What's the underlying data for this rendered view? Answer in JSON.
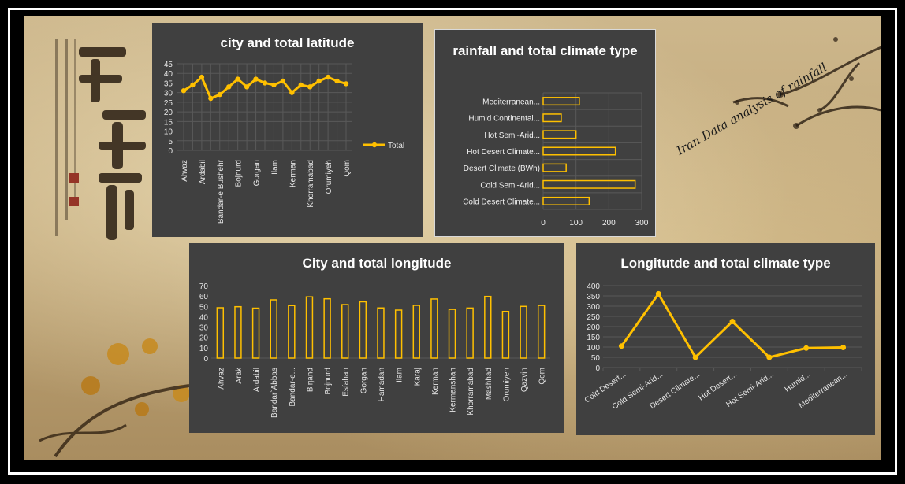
{
  "annotation": "Iran Data analysis of rainfall",
  "colors": {
    "accent": "#ffc000",
    "panel": "#404040",
    "gridline": "#595959",
    "text": "#ffffff"
  },
  "chart_data": [
    {
      "id": "latitude",
      "type": "line",
      "title": "city and total latitude",
      "categories": [
        "Ahvaz",
        "Arak",
        "Ardabil",
        "Bandar`Abbas",
        "Bandar-e Bushehr",
        "Birjand",
        "Bojnurd",
        "Esfahan",
        "Gorgan",
        "Hamadan",
        "Ilam",
        "Karaj",
        "Kerman",
        "Kermanshah",
        "Khorramabad",
        "Mashhad",
        "Orumiyeh",
        "Qazvin",
        "Qom"
      ],
      "tick_labels": [
        "Ahvaz",
        "",
        "Ardabil",
        "",
        "Bandar-e Bushehr",
        "",
        "Bojnurd",
        "",
        "Gorgan",
        "",
        "Ilam",
        "",
        "Kerman",
        "",
        "Khorramabad",
        "",
        "Orumiyeh",
        "",
        "Qom"
      ],
      "series": [
        {
          "name": "Total",
          "values": [
            31,
            34,
            38,
            27,
            29,
            33,
            37,
            33,
            37,
            35,
            34,
            36,
            30,
            34,
            33,
            36,
            38,
            36,
            34.6
          ]
        }
      ],
      "ylim": [
        0,
        45
      ],
      "yticks": [
        0,
        5,
        10,
        15,
        20,
        25,
        30,
        35,
        40,
        45
      ],
      "legend": "right",
      "grid": true
    },
    {
      "id": "rainfall",
      "type": "bar",
      "orientation": "horizontal",
      "title": "rainfall and total climate type",
      "categories": [
        "Cold Desert Climate...",
        "Cold Semi-Arid...",
        "Desert Climate (BWh)",
        "Hot Desert Climate...",
        "Hot Semi-Arid...",
        "Humid Continental...",
        "Mediterranean..."
      ],
      "values": [
        140,
        280,
        70,
        220,
        100,
        55,
        110
      ],
      "xlim": [
        0,
        300
      ],
      "xticks": [
        0,
        100,
        200,
        300
      ],
      "grid": true
    },
    {
      "id": "longitude",
      "type": "bar",
      "title": "City and total longitude",
      "categories": [
        "Ahvaz",
        "Arak",
        "Ardabil",
        "Bandar`Abbas",
        "Bandar-e...",
        "Birjand",
        "Bojnurd",
        "Esfahan",
        "Gorgan",
        "Hamadan",
        "Ilam",
        "Karaj",
        "Kerman",
        "Kermanshah",
        "Khorramabad",
        "Mashhad",
        "Orumiyeh",
        "Qazvin",
        "Qom"
      ],
      "values": [
        48.7,
        49.7,
        48.3,
        56.3,
        50.8,
        59.2,
        57.3,
        51.7,
        54.4,
        48.5,
        46.4,
        51.0,
        57.1,
        47.1,
        48.4,
        59.6,
        45.1,
        50.0,
        50.9
      ],
      "ylim": [
        0,
        70
      ],
      "yticks": [
        0,
        10,
        20,
        30,
        40,
        50,
        60,
        70
      ],
      "grid": false
    },
    {
      "id": "climate",
      "type": "line",
      "title": "Longitutde and total climate type",
      "categories": [
        "Cold Desert...",
        "Cold Semi-Arid...",
        "Desert Climate...",
        "Hot Desert...",
        "Hot Semi-Arid...",
        "Humid...",
        "Mediterranean..."
      ],
      "values": [
        105,
        360,
        50,
        225,
        50,
        95,
        98
      ],
      "ylim": [
        0,
        400
      ],
      "yticks": [
        0,
        50,
        100,
        150,
        200,
        250,
        300,
        350,
        400
      ],
      "grid": true
    }
  ]
}
